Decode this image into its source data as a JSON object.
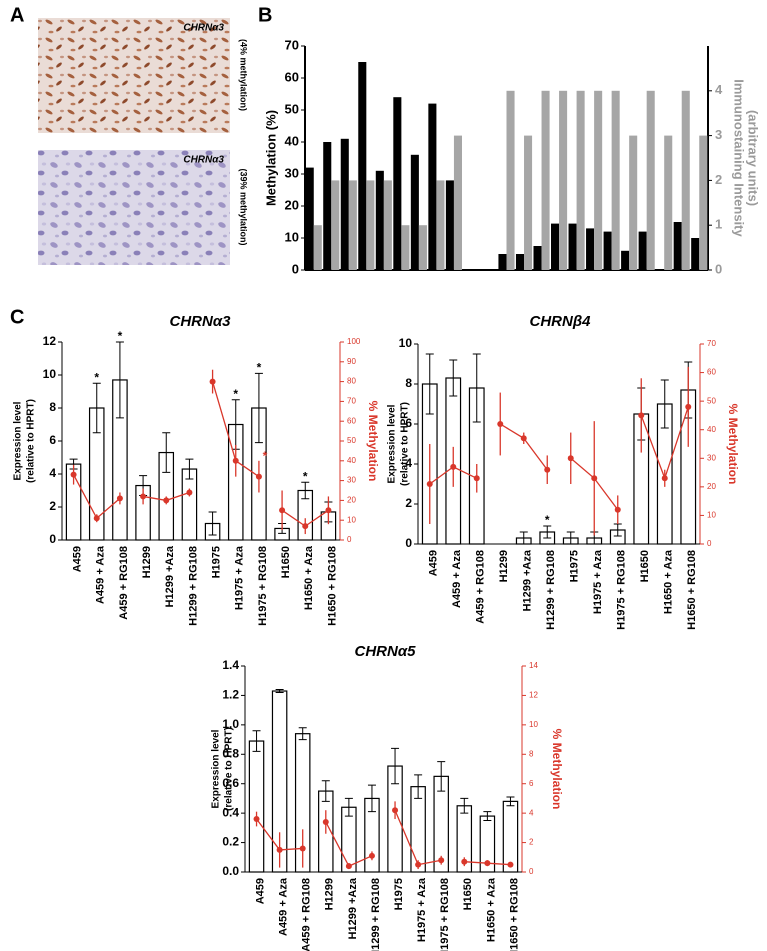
{
  "panel_a": {
    "label": "A",
    "images": [
      {
        "title": "CHRNα3",
        "caption": "(4% methylation)"
      },
      {
        "title": "CHRNα3",
        "caption": "(39% methylation)"
      }
    ]
  },
  "chart_data": [
    {
      "type": "bar",
      "panel_label": "B",
      "categories": [
        null,
        null,
        null,
        null,
        null,
        null,
        null,
        null,
        null,
        null,
        null,
        null,
        null,
        null,
        null,
        null,
        null,
        null,
        null,
        null,
        null,
        null,
        null
      ],
      "series": [
        {
          "color": "#000000",
          "values": [
            32,
            40,
            41,
            65,
            31,
            54,
            36,
            52,
            28,
            null,
            null,
            5,
            5,
            7.5,
            14.5,
            14.5,
            13,
            12,
            6,
            12,
            0,
            15,
            10
          ]
        },
        {
          "color": "#a6a6a6",
          "axis": "y2",
          "values": [
            1,
            2,
            2,
            2,
            2,
            1,
            1,
            2,
            3,
            null,
            null,
            4,
            3,
            4,
            4,
            4,
            4,
            4,
            3,
            4,
            3,
            4,
            3
          ]
        }
      ],
      "ylabel": "Methylation (%)",
      "y2label": [
        "Immunostaining Intensity",
        "(arbitrary units)"
      ],
      "ylim": [
        0,
        70
      ],
      "yticks": [
        0,
        10,
        20,
        30,
        40,
        50,
        60,
        70
      ],
      "y2lim": [
        0,
        5
      ],
      "y2ticks": [
        0,
        1,
        2,
        3,
        4
      ]
    },
    {
      "type": "bar_line",
      "panel_label": "C",
      "title": "CHRNα3",
      "categories": [
        "A459",
        "A459 + Aza",
        "A459 + RG108",
        "H1299",
        "H1299 +Aza",
        "H1299 + RG108",
        "H1975",
        "H1975 + Aza",
        "H1975 + RG108",
        "H1650",
        "H1650 + Aza",
        "H1650 + RG108"
      ],
      "series": [
        {
          "type": "bar",
          "color": "#ffffff",
          "values": [
            4.6,
            8.0,
            9.7,
            3.3,
            5.3,
            4.3,
            1.0,
            7.0,
            8.0,
            0.7,
            3.0,
            1.7
          ],
          "errors": [
            0.3,
            1.5,
            2.3,
            0.6,
            1.2,
            0.6,
            0.7,
            1.5,
            2.1,
            0.3,
            0.5,
            0.6
          ]
        },
        {
          "type": "line",
          "color": "#d9372b",
          "axis": "y2",
          "values": [
            33,
            11,
            21,
            22,
            20,
            24,
            80,
            40,
            32,
            15,
            7,
            15
          ],
          "errors": [
            5,
            2,
            3,
            4,
            2,
            2,
            6,
            8,
            8,
            10,
            4,
            7
          ]
        }
      ],
      "significance": [
        null,
        "*",
        "*",
        null,
        null,
        null,
        null,
        "*",
        "*",
        null,
        "*",
        null
      ],
      "y2_significance": [
        null,
        null,
        null,
        null,
        null,
        null,
        null,
        null,
        "*",
        null,
        null,
        null
      ],
      "ylabel": [
        "Expression level",
        "(relative to HPRT)"
      ],
      "y2label": "% Methylation",
      "ylim": [
        0,
        12
      ],
      "yticks": [
        0,
        2,
        4,
        6,
        8,
        10,
        12
      ],
      "y2lim": [
        0,
        100
      ],
      "y2ticks": [
        0,
        10,
        20,
        30,
        40,
        50,
        60,
        70,
        80,
        90,
        100
      ]
    },
    {
      "type": "bar_line",
      "title": "CHRNβ4",
      "categories": [
        "A459",
        "A459 + Aza",
        "A459 + RG108",
        "H1299",
        "H1299 +Aza",
        "H1299 + RG108",
        "H1975",
        "H1975 + Aza",
        "H1975 + RG108",
        "H1650",
        "H1650 + Aza",
        "H1650 + RG108"
      ],
      "series": [
        {
          "type": "bar",
          "color": "#ffffff",
          "values": [
            8.0,
            8.3,
            7.8,
            0,
            0.3,
            0.6,
            0.3,
            0.3,
            0.7,
            6.5,
            7.0,
            7.7
          ],
          "errors": [
            1.5,
            0.9,
            1.7,
            0,
            0.3,
            0.3,
            0.3,
            0.3,
            0.3,
            1.3,
            1.2,
            1.4
          ]
        },
        {
          "type": "line",
          "color": "#d9372b",
          "axis": "y2",
          "values": [
            21,
            27,
            23,
            42,
            37,
            26,
            30,
            23,
            12,
            45,
            23,
            48
          ],
          "errors": [
            14,
            7,
            5,
            11,
            2,
            5,
            9,
            20,
            5,
            13,
            3,
            14
          ]
        }
      ],
      "significance": [
        null,
        null,
        null,
        null,
        null,
        "*",
        null,
        null,
        null,
        null,
        null,
        null
      ],
      "ylabel": [
        "Expression level",
        "(relative to HPRT)"
      ],
      "y2label": "% Methylation",
      "ylim": [
        0,
        10
      ],
      "yticks": [
        0,
        2,
        4,
        6,
        8,
        10
      ],
      "y2lim": [
        0,
        70
      ],
      "y2ticks": [
        0,
        10,
        20,
        30,
        40,
        50,
        60,
        70
      ]
    },
    {
      "type": "bar_line",
      "title": "CHRNα5",
      "categories": [
        "A459",
        "A459 + Aza",
        "A459 + RG108",
        "H1299",
        "H1299 +Aza",
        "H1299 + RG108",
        "H1975",
        "H1975 + Aza",
        "H1975 + RG108",
        "H1650",
        "H1650 + Aza",
        "H1650 + RG108"
      ],
      "series": [
        {
          "type": "bar",
          "color": "#ffffff",
          "values": [
            0.89,
            1.23,
            0.94,
            0.55,
            0.44,
            0.5,
            0.72,
            0.58,
            0.65,
            0.45,
            0.38,
            0.48
          ],
          "errors": [
            0.07,
            0.01,
            0.04,
            0.07,
            0.06,
            0.09,
            0.12,
            0.08,
            0.1,
            0.05,
            0.03,
            0.03
          ]
        },
        {
          "type": "line",
          "color": "#d9372b",
          "axis": "y2",
          "values": [
            3.6,
            1.5,
            1.6,
            3.4,
            0.4,
            1.1,
            4.2,
            0.5,
            0.8,
            0.7,
            0.6,
            0.5
          ],
          "errors": [
            0.5,
            1.2,
            1.3,
            0.8,
            0.2,
            0.3,
            0.6,
            0.3,
            0.3,
            0.3,
            0.2,
            0.1
          ]
        }
      ],
      "ylabel": [
        "Expression level",
        "(relative to HPRT)"
      ],
      "y2label": "% Methylation",
      "ylim": [
        0,
        1.4
      ],
      "yticks": [
        {
          "value": 0,
          "label": "0.0"
        },
        0.2,
        0.4,
        0.6,
        0.8,
        {
          "value": 1,
          "label": "1.0"
        },
        1.2,
        1.4
      ],
      "y2lim": [
        0,
        14
      ],
      "y2ticks": [
        0,
        2,
        4,
        6,
        8,
        10,
        12,
        14
      ]
    }
  ]
}
